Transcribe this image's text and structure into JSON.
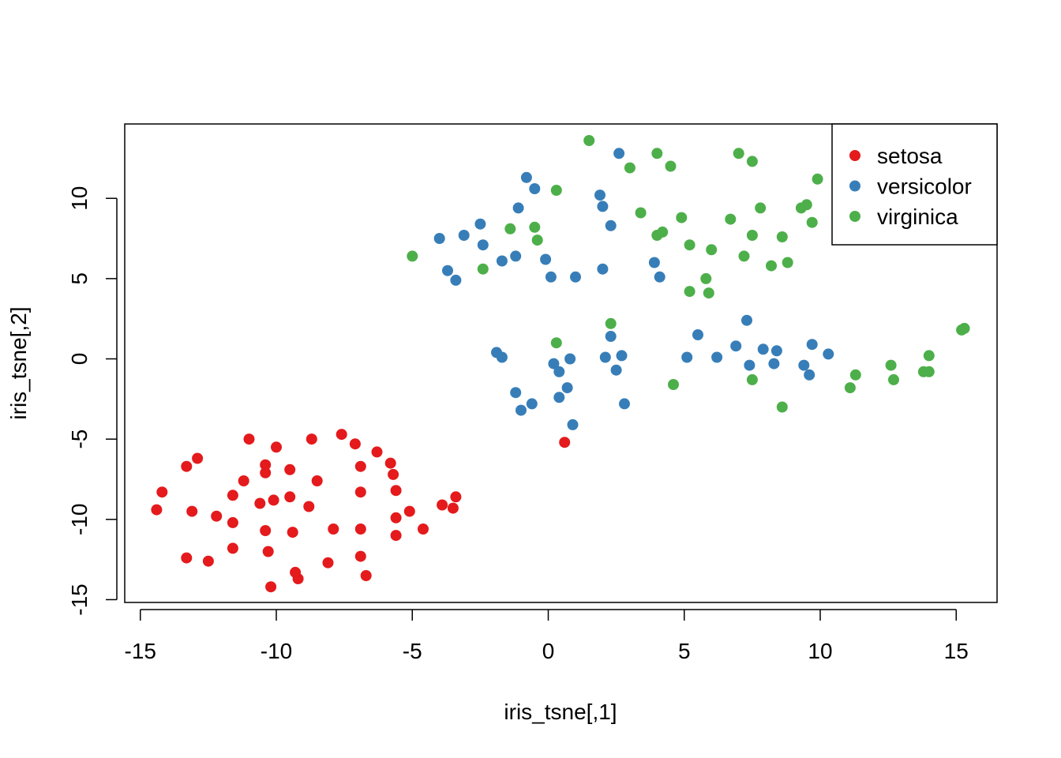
{
  "chart_data": {
    "type": "scatter",
    "title": "",
    "xlabel": "iris_tsne[,1]",
    "ylabel": "iris_tsne[,2]",
    "xlim": [
      -15.6,
      16.0
    ],
    "ylim": [
      -15.1,
      14.6
    ],
    "xticks": [
      -15,
      -10,
      -5,
      0,
      5,
      10,
      15
    ],
    "xtick_labels": [
      "-15",
      "-10",
      "-5",
      "0",
      "5",
      "10",
      "15"
    ],
    "yticks": [
      -15,
      -10,
      -5,
      0,
      5,
      10
    ],
    "ytick_labels": [
      "-15",
      "-10",
      "-5",
      "0",
      "5",
      "10"
    ],
    "grid": false,
    "legend_position": "top-right",
    "series": [
      {
        "name": "setosa",
        "color": "#E41A1C",
        "points": [
          [
            -14.4,
            -9.4
          ],
          [
            -14.2,
            -8.3
          ],
          [
            -13.3,
            -6.7
          ],
          [
            -12.9,
            -6.2
          ],
          [
            -13.1,
            -9.5
          ],
          [
            -12.2,
            -9.8
          ],
          [
            -11.6,
            -8.5
          ],
          [
            -11.6,
            -10.2
          ],
          [
            -11.2,
            -7.6
          ],
          [
            -11.0,
            -5.0
          ],
          [
            -13.3,
            -12.4
          ],
          [
            -12.5,
            -12.6
          ],
          [
            -11.6,
            -11.8
          ],
          [
            -10.6,
            -9.0
          ],
          [
            -10.4,
            -6.6
          ],
          [
            -10.4,
            -7.1
          ],
          [
            -10.0,
            -5.5
          ],
          [
            -10.1,
            -8.8
          ],
          [
            -10.4,
            -10.7
          ],
          [
            -10.3,
            -12.0
          ],
          [
            -10.2,
            -14.2
          ],
          [
            -9.5,
            -6.9
          ],
          [
            -9.5,
            -8.6
          ],
          [
            -9.4,
            -10.8
          ],
          [
            -9.3,
            -13.3
          ],
          [
            -9.2,
            -13.7
          ],
          [
            -8.8,
            -9.2
          ],
          [
            -8.7,
            -5.0
          ],
          [
            -8.5,
            -7.6
          ],
          [
            -8.1,
            -12.7
          ],
          [
            -7.9,
            -10.6
          ],
          [
            -7.6,
            -4.7
          ],
          [
            -7.1,
            -5.3
          ],
          [
            -6.9,
            -6.7
          ],
          [
            -6.9,
            -8.3
          ],
          [
            -6.9,
            -10.6
          ],
          [
            -6.9,
            -12.3
          ],
          [
            -6.7,
            -13.5
          ],
          [
            -6.3,
            -5.8
          ],
          [
            -5.8,
            -6.5
          ],
          [
            -5.7,
            -7.2
          ],
          [
            -5.6,
            -8.2
          ],
          [
            -5.6,
            -9.9
          ],
          [
            -5.6,
            -11.0
          ],
          [
            -5.1,
            -9.5
          ],
          [
            -4.6,
            -10.6
          ],
          [
            -3.9,
            -9.1
          ],
          [
            -3.5,
            -9.3
          ],
          [
            -3.4,
            -8.6
          ],
          [
            0.6,
            -5.2
          ]
        ]
      },
      {
        "name": "versicolor",
        "color": "#377EB8",
        "points": [
          [
            -4.0,
            7.5
          ],
          [
            -3.7,
            5.5
          ],
          [
            -3.4,
            4.9
          ],
          [
            -3.1,
            7.7
          ],
          [
            -2.5,
            8.4
          ],
          [
            -2.4,
            7.1
          ],
          [
            -1.9,
            0.4
          ],
          [
            -1.7,
            0.1
          ],
          [
            -1.7,
            6.1
          ],
          [
            -1.2,
            6.4
          ],
          [
            -1.1,
            9.4
          ],
          [
            -1.2,
            -2.1
          ],
          [
            -1.0,
            -3.2
          ],
          [
            -0.8,
            11.3
          ],
          [
            -0.5,
            10.6
          ],
          [
            -0.6,
            -2.8
          ],
          [
            -0.1,
            6.2
          ],
          [
            0.1,
            5.1
          ],
          [
            0.2,
            -0.3
          ],
          [
            0.4,
            -0.8
          ],
          [
            0.4,
            -2.4
          ],
          [
            0.7,
            -1.8
          ],
          [
            0.8,
            0.0
          ],
          [
            0.9,
            -4.1
          ],
          [
            1.0,
            5.1
          ],
          [
            1.9,
            10.2
          ],
          [
            2.0,
            9.5
          ],
          [
            2.0,
            5.6
          ],
          [
            2.1,
            0.1
          ],
          [
            2.3,
            1.4
          ],
          [
            2.3,
            8.3
          ],
          [
            2.5,
            -0.7
          ],
          [
            2.6,
            12.8
          ],
          [
            2.7,
            0.2
          ],
          [
            2.8,
            -2.8
          ],
          [
            3.9,
            6.0
          ],
          [
            4.1,
            5.1
          ],
          [
            5.1,
            0.1
          ],
          [
            5.5,
            1.5
          ],
          [
            6.2,
            0.1
          ],
          [
            6.9,
            0.8
          ],
          [
            7.3,
            2.4
          ],
          [
            7.4,
            -0.4
          ],
          [
            7.9,
            0.6
          ],
          [
            8.3,
            -0.3
          ],
          [
            8.4,
            0.5
          ],
          [
            9.4,
            -0.4
          ],
          [
            9.6,
            -1.0
          ],
          [
            9.7,
            0.9
          ],
          [
            10.3,
            0.3
          ]
        ]
      },
      {
        "name": "virginica",
        "color": "#4DAF4A",
        "points": [
          [
            -5.0,
            6.4
          ],
          [
            -2.4,
            5.6
          ],
          [
            -1.4,
            8.1
          ],
          [
            -0.5,
            8.2
          ],
          [
            -0.4,
            7.4
          ],
          [
            0.3,
            10.5
          ],
          [
            0.3,
            1.0
          ],
          [
            1.5,
            13.6
          ],
          [
            2.3,
            2.2
          ],
          [
            3.0,
            11.9
          ],
          [
            3.4,
            9.1
          ],
          [
            4.0,
            12.8
          ],
          [
            4.0,
            7.7
          ],
          [
            4.2,
            7.9
          ],
          [
            4.5,
            12.0
          ],
          [
            4.6,
            -1.6
          ],
          [
            4.9,
            8.8
          ],
          [
            5.2,
            7.1
          ],
          [
            5.2,
            4.2
          ],
          [
            5.8,
            5.0
          ],
          [
            5.9,
            4.1
          ],
          [
            6.0,
            6.8
          ],
          [
            6.7,
            8.7
          ],
          [
            7.0,
            12.8
          ],
          [
            7.2,
            6.4
          ],
          [
            7.5,
            7.7
          ],
          [
            7.5,
            12.3
          ],
          [
            7.5,
            -1.3
          ],
          [
            7.8,
            9.4
          ],
          [
            8.2,
            5.8
          ],
          [
            8.6,
            7.6
          ],
          [
            8.6,
            -3.0
          ],
          [
            8.8,
            6.0
          ],
          [
            9.3,
            9.4
          ],
          [
            9.5,
            9.6
          ],
          [
            9.7,
            8.5
          ],
          [
            9.9,
            11.2
          ],
          [
            11.1,
            -1.8
          ],
          [
            11.3,
            -1.0
          ],
          [
            12.6,
            -0.4
          ],
          [
            12.7,
            -1.3
          ],
          [
            13.8,
            -0.8
          ],
          [
            14.0,
            -0.8
          ],
          [
            14.0,
            0.2
          ],
          [
            15.2,
            1.8
          ],
          [
            15.3,
            1.9
          ]
        ]
      }
    ]
  }
}
